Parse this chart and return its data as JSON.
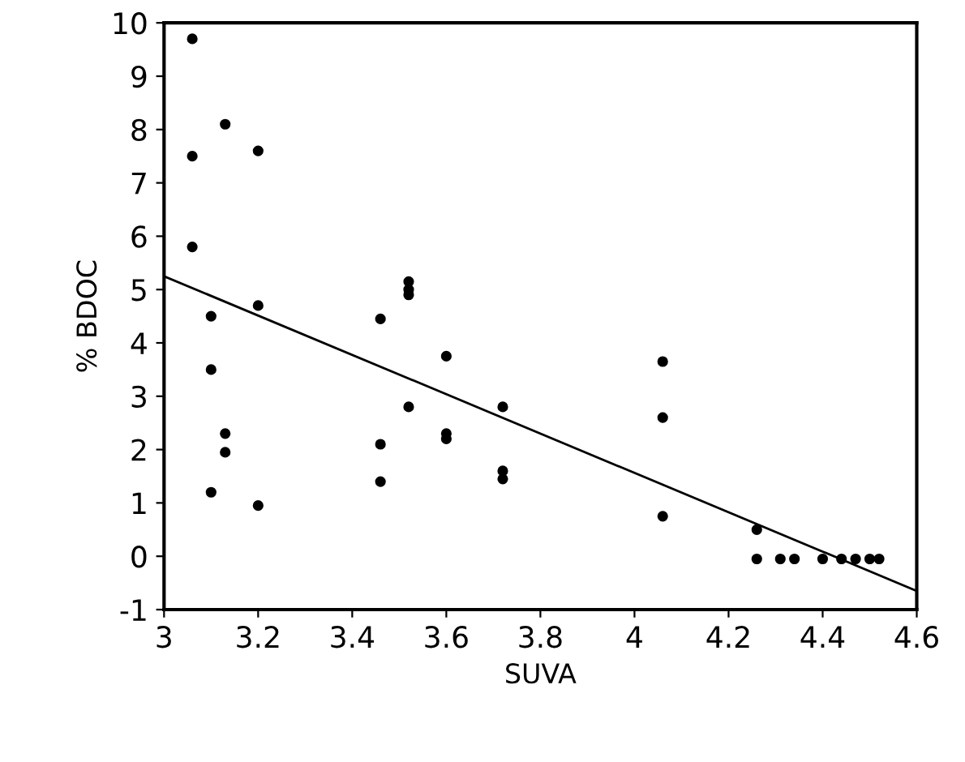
{
  "chart_data": {
    "type": "scatter",
    "xlabel": "SUVA",
    "ylabel": "% BDOC",
    "series": [
      {
        "color": "#000000",
        "marker": "circle",
        "x": [
          3.06,
          3.06,
          3.06,
          3.1,
          3.1,
          3.1,
          3.13,
          3.13,
          3.13,
          3.2,
          3.2,
          3.2,
          3.46,
          3.46,
          3.46,
          3.52,
          3.52,
          3.52,
          3.52,
          3.6,
          3.6,
          3.6,
          3.72,
          3.72,
          3.72,
          4.06,
          4.06,
          4.06,
          4.26,
          4.26,
          4.31,
          4.34,
          4.4,
          4.44,
          4.47,
          4.5,
          4.52
        ],
        "values": [
          9.7,
          7.5,
          5.8,
          4.5,
          3.5,
          1.2,
          8.1,
          2.3,
          1.95,
          7.6,
          4.7,
          0.95,
          4.45,
          2.1,
          1.4,
          5.15,
          5.0,
          4.9,
          2.8,
          3.75,
          2.3,
          2.2,
          2.8,
          1.6,
          1.45,
          3.65,
          2.6,
          0.75,
          0.5,
          -0.05,
          -0.05,
          -0.05,
          -0.05,
          -0.05,
          -0.05,
          -0.05,
          -0.05
        ]
      },
      {
        "type": "line",
        "color": "#000000",
        "marker": "none",
        "line_style": "solid",
        "x": [
          3.0,
          4.6
        ],
        "values": [
          5.25,
          -0.65
        ]
      }
    ],
    "xlim": [
      3,
      4.6
    ],
    "xticks": [
      3,
      3.2,
      3.4,
      3.6,
      3.8,
      4,
      4.2,
      4.4,
      4.6
    ],
    "ylim": [
      -1,
      10
    ],
    "yticks": [
      -1,
      0,
      1,
      2,
      3,
      4,
      5,
      6,
      7,
      8,
      9,
      10
    ],
    "grid": false
  }
}
